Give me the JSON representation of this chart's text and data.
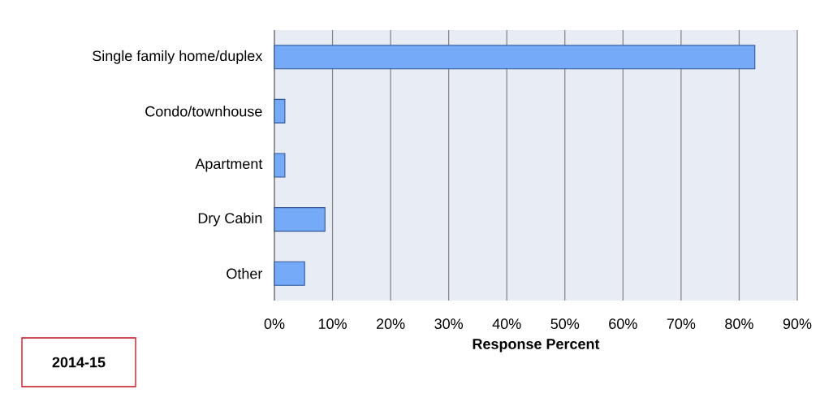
{
  "chart_data": {
    "type": "bar",
    "orientation": "horizontal",
    "categories": [
      "Single family home/duplex",
      "Condo/townhouse",
      "Apartment",
      "Dry Cabin",
      "Other"
    ],
    "values": [
      82.7,
      1.8,
      1.8,
      8.7,
      5.2
    ],
    "color": "#74aaf8",
    "xlim": [
      0,
      90
    ],
    "xticks": [
      {
        "value": 0,
        "label": "0%"
      },
      {
        "value": 10,
        "label": "10%"
      },
      {
        "value": 20,
        "label": "20%"
      },
      {
        "value": 30,
        "label": "30%"
      },
      {
        "value": 40,
        "label": "40%"
      },
      {
        "value": 50,
        "label": "50%"
      },
      {
        "value": 60,
        "label": "60%"
      },
      {
        "value": 70,
        "label": "70%"
      },
      {
        "value": 80,
        "label": "80%"
      },
      {
        "value": 90,
        "label": "90%"
      }
    ],
    "xlabel": "**Response Percent**",
    "grid": "x",
    "annotations": [
      "**2014-15**"
    ]
  }
}
